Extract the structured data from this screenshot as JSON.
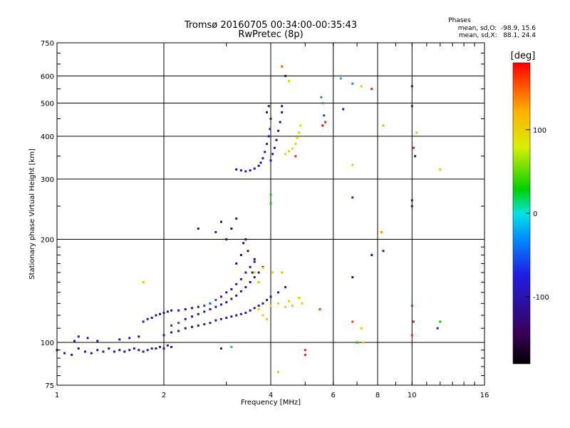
{
  "chart_data": {
    "type": "scatter",
    "title": "Tromsø 20160705 00:34:00-00:35:43",
    "subtitle": "RwPretec (8p)",
    "xlabel": "Frequency [MHz]",
    "ylabel": "Stationary phase Virtual Height [km]",
    "x_scale": "log",
    "y_scale": "log",
    "xlim": [
      1,
      16
    ],
    "ylim": [
      75,
      750
    ],
    "x_ticks": [
      1,
      2,
      4,
      6,
      8,
      10,
      16
    ],
    "y_ticks": [
      75,
      100,
      200,
      300,
      400,
      500,
      600,
      750
    ],
    "grid": true,
    "stats": {
      "heading": "Phases",
      "line_o": "mean, sd,O:  -98.9, 15.6",
      "line_x": "mean, sd,X:   88.1, 24.4"
    },
    "colorbar": {
      "label": "[deg]",
      "ticks": [
        100,
        0,
        -100
      ],
      "range": [
        -180,
        180
      ],
      "colors": [
        "#000000",
        "#3a0055",
        "#1f1fe6",
        "#0090ff",
        "#00e5e5",
        "#00d000",
        "#d8f000",
        "#ffb000",
        "#ff0000"
      ]
    },
    "series": [
      {
        "values": [
          {
            "x": 1.0,
            "y": 95,
            "c": -105
          },
          {
            "x": 1.05,
            "y": 93,
            "c": -110
          },
          {
            "x": 1.1,
            "y": 92,
            "c": -100
          },
          {
            "x": 1.15,
            "y": 96,
            "c": -105
          },
          {
            "x": 1.2,
            "y": 94,
            "c": -108
          },
          {
            "x": 1.25,
            "y": 93,
            "c": -102
          },
          {
            "x": 1.3,
            "y": 95,
            "c": -110
          },
          {
            "x": 1.35,
            "y": 94,
            "c": -105
          },
          {
            "x": 1.4,
            "y": 96,
            "c": -100
          },
          {
            "x": 1.45,
            "y": 94,
            "c": -112
          },
          {
            "x": 1.5,
            "y": 95,
            "c": -104
          },
          {
            "x": 1.55,
            "y": 94,
            "c": -106
          },
          {
            "x": 1.6,
            "y": 95,
            "c": -108
          },
          {
            "x": 1.65,
            "y": 96,
            "c": -102
          },
          {
            "x": 1.7,
            "y": 95,
            "c": -110
          },
          {
            "x": 1.75,
            "y": 94,
            "c": -105
          },
          {
            "x": 1.8,
            "y": 95,
            "c": -100
          },
          {
            "x": 1.85,
            "y": 96,
            "c": -108
          },
          {
            "x": 1.9,
            "y": 96,
            "c": -104
          },
          {
            "x": 1.95,
            "y": 97,
            "c": -110
          },
          {
            "x": 2.0,
            "y": 96,
            "c": -106
          },
          {
            "x": 2.05,
            "y": 98,
            "c": -102
          },
          {
            "x": 2.1,
            "y": 97,
            "c": -108
          },
          {
            "x": 1.12,
            "y": 101,
            "c": -100
          },
          {
            "x": 1.15,
            "y": 104,
            "c": -108
          },
          {
            "x": 1.22,
            "y": 103,
            "c": -104
          },
          {
            "x": 1.3,
            "y": 101,
            "c": -110
          },
          {
            "x": 1.5,
            "y": 102,
            "c": -105
          },
          {
            "x": 1.6,
            "y": 103,
            "c": -100
          },
          {
            "x": 1.7,
            "y": 104,
            "c": -108
          },
          {
            "x": 1.75,
            "y": 115,
            "c": -100
          },
          {
            "x": 1.8,
            "y": 117,
            "c": -104
          },
          {
            "x": 1.85,
            "y": 118,
            "c": -110
          },
          {
            "x": 1.9,
            "y": 120,
            "c": -106
          },
          {
            "x": 1.95,
            "y": 121,
            "c": -102
          },
          {
            "x": 2.0,
            "y": 122,
            "c": -108
          },
          {
            "x": 2.05,
            "y": 123,
            "c": -104
          },
          {
            "x": 2.1,
            "y": 124,
            "c": -100
          },
          {
            "x": 2.2,
            "y": 124,
            "c": -106
          },
          {
            "x": 2.3,
            "y": 125,
            "c": -110
          },
          {
            "x": 2.4,
            "y": 126,
            "c": -102
          },
          {
            "x": 2.5,
            "y": 127,
            "c": -108
          },
          {
            "x": 2.6,
            "y": 128,
            "c": -60
          },
          {
            "x": 2.7,
            "y": 130,
            "c": -50
          },
          {
            "x": 2.8,
            "y": 133,
            "c": -55
          },
          {
            "x": 2.9,
            "y": 136,
            "c": -100
          },
          {
            "x": 3.0,
            "y": 140,
            "c": -108
          },
          {
            "x": 3.1,
            "y": 143,
            "c": -104
          },
          {
            "x": 3.2,
            "y": 148,
            "c": -110
          },
          {
            "x": 3.3,
            "y": 153,
            "c": -100
          },
          {
            "x": 3.4,
            "y": 160,
            "c": -106
          },
          {
            "x": 3.5,
            "y": 166,
            "c": -102
          },
          {
            "x": 3.6,
            "y": 172,
            "c": -108
          },
          {
            "x": 2.0,
            "y": 105,
            "c": -100
          },
          {
            "x": 2.1,
            "y": 107,
            "c": -108
          },
          {
            "x": 2.2,
            "y": 108,
            "c": -104
          },
          {
            "x": 2.3,
            "y": 110,
            "c": -106
          },
          {
            "x": 2.4,
            "y": 111,
            "c": -102
          },
          {
            "x": 2.5,
            "y": 112,
            "c": -110
          },
          {
            "x": 2.6,
            "y": 113,
            "c": -104
          },
          {
            "x": 2.7,
            "y": 114,
            "c": -100
          },
          {
            "x": 2.8,
            "y": 116,
            "c": -108
          },
          {
            "x": 2.9,
            "y": 117,
            "c": -106
          },
          {
            "x": 3.0,
            "y": 118,
            "c": -102
          },
          {
            "x": 3.1,
            "y": 119,
            "c": -110
          },
          {
            "x": 3.2,
            "y": 120,
            "c": -104
          },
          {
            "x": 3.3,
            "y": 121,
            "c": -100
          },
          {
            "x": 3.4,
            "y": 122,
            "c": -108
          },
          {
            "x": 3.5,
            "y": 124,
            "c": -106
          },
          {
            "x": 3.6,
            "y": 126,
            "c": -102
          },
          {
            "x": 3.7,
            "y": 128,
            "c": -110
          },
          {
            "x": 3.8,
            "y": 130,
            "c": -104
          },
          {
            "x": 3.9,
            "y": 133,
            "c": -100
          },
          {
            "x": 4.0,
            "y": 136,
            "c": -108
          },
          {
            "x": 4.2,
            "y": 140,
            "c": -106
          },
          {
            "x": 4.4,
            "y": 145,
            "c": -102
          },
          {
            "x": 2.1,
            "y": 112,
            "c": -60
          },
          {
            "x": 2.2,
            "y": 114,
            "c": -55
          },
          {
            "x": 2.3,
            "y": 117,
            "c": -100
          },
          {
            "x": 2.4,
            "y": 119,
            "c": -108
          },
          {
            "x": 2.5,
            "y": 121,
            "c": -104
          },
          {
            "x": 2.6,
            "y": 123,
            "c": -110
          },
          {
            "x": 2.7,
            "y": 125,
            "c": -100
          },
          {
            "x": 2.8,
            "y": 127,
            "c": -106
          },
          {
            "x": 2.9,
            "y": 129,
            "c": -102
          },
          {
            "x": 3.0,
            "y": 131,
            "c": -108
          },
          {
            "x": 3.1,
            "y": 134,
            "c": -104
          },
          {
            "x": 3.2,
            "y": 137,
            "c": -110
          },
          {
            "x": 3.3,
            "y": 141,
            "c": -100
          },
          {
            "x": 3.4,
            "y": 145,
            "c": -106
          },
          {
            "x": 3.5,
            "y": 150,
            "c": -102
          },
          {
            "x": 3.6,
            "y": 155,
            "c": -108
          },
          {
            "x": 3.7,
            "y": 160,
            "c": -104
          },
          {
            "x": 3.8,
            "y": 166,
            "c": -110
          },
          {
            "x": 3.2,
            "y": 170,
            "c": -130
          },
          {
            "x": 3.3,
            "y": 180,
            "c": -125
          },
          {
            "x": 3.35,
            "y": 195,
            "c": -120
          },
          {
            "x": 3.4,
            "y": 200,
            "c": -130
          },
          {
            "x": 3.45,
            "y": 185,
            "c": -128
          },
          {
            "x": 3.6,
            "y": 175,
            "c": -125
          },
          {
            "x": 3.55,
            "y": 160,
            "c": -120
          },
          {
            "x": 3.0,
            "y": 200,
            "c": -130
          },
          {
            "x": 3.1,
            "y": 215,
            "c": -140
          },
          {
            "x": 2.9,
            "y": 225,
            "c": -125
          },
          {
            "x": 3.2,
            "y": 230,
            "c": -130
          },
          {
            "x": 2.5,
            "y": 215,
            "c": -120
          },
          {
            "x": 2.8,
            "y": 210,
            "c": -110
          },
          {
            "x": 3.2,
            "y": 320,
            "c": -110
          },
          {
            "x": 3.3,
            "y": 318,
            "c": -108
          },
          {
            "x": 3.4,
            "y": 316,
            "c": -104
          },
          {
            "x": 3.5,
            "y": 318,
            "c": -106
          },
          {
            "x": 3.6,
            "y": 322,
            "c": -102
          },
          {
            "x": 3.7,
            "y": 328,
            "c": -110
          },
          {
            "x": 3.75,
            "y": 335,
            "c": -100
          },
          {
            "x": 3.8,
            "y": 345,
            "c": -108
          },
          {
            "x": 3.85,
            "y": 360,
            "c": -104
          },
          {
            "x": 3.9,
            "y": 380,
            "c": -106
          },
          {
            "x": 3.95,
            "y": 400,
            "c": -102
          },
          {
            "x": 3.98,
            "y": 420,
            "c": -110
          },
          {
            "x": 4.0,
            "y": 450,
            "c": -100
          },
          {
            "x": 3.9,
            "y": 470,
            "c": -108
          },
          {
            "x": 3.95,
            "y": 490,
            "c": -104
          },
          {
            "x": 4.0,
            "y": 340,
            "c": -100
          },
          {
            "x": 4.05,
            "y": 355,
            "c": -108
          },
          {
            "x": 4.1,
            "y": 370,
            "c": -104
          },
          {
            "x": 4.15,
            "y": 390,
            "c": -106
          },
          {
            "x": 4.2,
            "y": 415,
            "c": -102
          },
          {
            "x": 4.25,
            "y": 440,
            "c": -110
          },
          {
            "x": 4.3,
            "y": 470,
            "c": -100
          },
          {
            "x": 4.3,
            "y": 490,
            "c": -108
          },
          {
            "x": 4.4,
            "y": 355,
            "c": 100
          },
          {
            "x": 4.5,
            "y": 362,
            "c": 105
          },
          {
            "x": 4.6,
            "y": 368,
            "c": 95
          },
          {
            "x": 4.7,
            "y": 380,
            "c": 110
          },
          {
            "x": 4.75,
            "y": 395,
            "c": 100
          },
          {
            "x": 4.8,
            "y": 410,
            "c": 105
          },
          {
            "x": 4.85,
            "y": 430,
            "c": 98
          },
          {
            "x": 3.7,
            "y": 125,
            "c": 100
          },
          {
            "x": 3.8,
            "y": 120,
            "c": 105
          },
          {
            "x": 3.9,
            "y": 117,
            "c": 110
          },
          {
            "x": 4.0,
            "y": 128,
            "c": 95
          },
          {
            "x": 4.2,
            "y": 130,
            "c": 100
          },
          {
            "x": 4.4,
            "y": 127,
            "c": 105
          },
          {
            "x": 4.5,
            "y": 132,
            "c": 98
          },
          {
            "x": 4.6,
            "y": 128,
            "c": 110
          },
          {
            "x": 4.8,
            "y": 135,
            "c": 100
          },
          {
            "x": 4.9,
            "y": 130,
            "c": 105
          },
          {
            "x": 3.6,
            "y": 160,
            "c": 100
          },
          {
            "x": 3.8,
            "y": 165,
            "c": 105
          },
          {
            "x": 3.7,
            "y": 150,
            "c": 110
          },
          {
            "x": 4.05,
            "y": 160,
            "c": 98
          },
          {
            "x": 5.6,
            "y": 500,
            "c": -20
          },
          {
            "x": 5.65,
            "y": 460,
            "c": -60
          },
          {
            "x": 5.6,
            "y": 430,
            "c": 180
          },
          {
            "x": 5.7,
            "y": 440,
            "c": 170
          },
          {
            "x": 5.55,
            "y": 520,
            "c": -30
          },
          {
            "x": 4.5,
            "y": 580,
            "c": 100
          },
          {
            "x": 4.3,
            "y": 640,
            "c": 150
          },
          {
            "x": 4.4,
            "y": 600,
            "c": -110
          },
          {
            "x": 6.3,
            "y": 590,
            "c": -20
          },
          {
            "x": 6.4,
            "y": 480,
            "c": -100
          },
          {
            "x": 6.8,
            "y": 570,
            "c": -30
          },
          {
            "x": 7.2,
            "y": 560,
            "c": 110
          },
          {
            "x": 7.7,
            "y": 550,
            "c": 170
          },
          {
            "x": 8.3,
            "y": 430,
            "c": 120
          },
          {
            "x": 10.0,
            "y": 560,
            "c": -110
          },
          {
            "x": 10.0,
            "y": 490,
            "c": -90
          },
          {
            "x": 10.1,
            "y": 370,
            "c": 170
          },
          {
            "x": 10.2,
            "y": 350,
            "c": -110
          },
          {
            "x": 10.3,
            "y": 410,
            "c": 110
          },
          {
            "x": 12.0,
            "y": 320,
            "c": 110
          },
          {
            "x": 6.8,
            "y": 330,
            "c": 100
          },
          {
            "x": 6.8,
            "y": 265,
            "c": -80
          },
          {
            "x": 10.0,
            "y": 260,
            "c": -110
          },
          {
            "x": 10.0,
            "y": 250,
            "c": -120
          },
          {
            "x": 8.2,
            "y": 210,
            "c": 130
          },
          {
            "x": 7.7,
            "y": 180,
            "c": -110
          },
          {
            "x": 8.3,
            "y": 185,
            "c": -100
          },
          {
            "x": 6.8,
            "y": 155,
            "c": -120
          },
          {
            "x": 6.8,
            "y": 115,
            "c": 160
          },
          {
            "x": 7.2,
            "y": 110,
            "c": 110
          },
          {
            "x": 10.0,
            "y": 128,
            "c": 170
          },
          {
            "x": 10.1,
            "y": 115,
            "c": 170
          },
          {
            "x": 10.0,
            "y": 105,
            "c": 170
          },
          {
            "x": 12.0,
            "y": 115,
            "c": 30
          },
          {
            "x": 11.8,
            "y": 110,
            "c": -90
          },
          {
            "x": 5.5,
            "y": 125,
            "c": 160
          },
          {
            "x": 5.0,
            "y": 95,
            "c": 170
          },
          {
            "x": 5.0,
            "y": 92,
            "c": 170
          },
          {
            "x": 4.2,
            "y": 82,
            "c": 110
          },
          {
            "x": 7.0,
            "y": 100,
            "c": 30
          },
          {
            "x": 7.3,
            "y": 100,
            "c": 110
          },
          {
            "x": 2.9,
            "y": 96,
            "c": -110
          },
          {
            "x": 3.1,
            "y": 97,
            "c": 20
          },
          {
            "x": 4.0,
            "y": 270,
            "c": 30
          },
          {
            "x": 4.0,
            "y": 255,
            "c": 30
          },
          {
            "x": 4.3,
            "y": 160,
            "c": 110
          },
          {
            "x": 1.75,
            "y": 150,
            "c": 110
          },
          {
            "x": 4.7,
            "y": 350,
            "c": 170
          }
        ]
      }
    ]
  }
}
